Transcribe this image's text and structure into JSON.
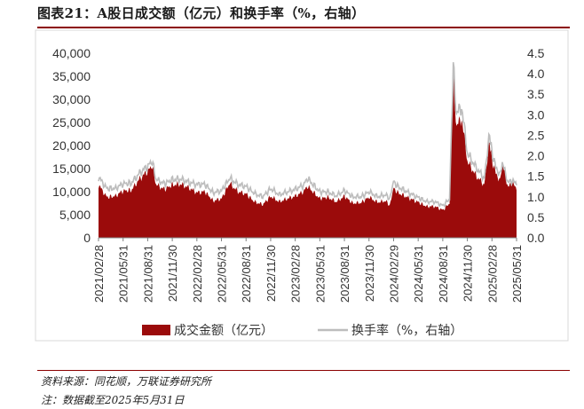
{
  "figure": {
    "title": "图表21：A股日成交额（亿元）和换手率（%，右轴）",
    "source": "资料来源：同花顺，万联证券研究所",
    "note": "注：数据截至2025年5月31日"
  },
  "chart_data": {
    "type": "area+line",
    "x_start": "2021/02/28",
    "x_end": "2025/05/31",
    "x_tick_labels": [
      "2021/02/28",
      "2021/05/31",
      "2021/08/31",
      "2021/11/30",
      "2022/02/28",
      "2022/05/31",
      "2022/08/31",
      "2022/11/30",
      "2023/02/28",
      "2023/05/31",
      "2023/08/31",
      "2023/11/30",
      "2024/02/29",
      "2024/05/31",
      "2024/08/31",
      "2024/11/30",
      "2025/02/28",
      "2025/05/31"
    ],
    "y_left": {
      "min": 0,
      "max": 40000,
      "ticks": [
        "0",
        "5,000",
        "10,000",
        "15,000",
        "20,000",
        "25,000",
        "30,000",
        "35,000",
        "40,000"
      ]
    },
    "y_right": {
      "min": 0,
      "max": 4.5,
      "ticks": [
        "0.0",
        "0.5",
        "1.0",
        "1.5",
        "2.0",
        "2.5",
        "3.0",
        "3.5",
        "4.0",
        "4.5"
      ]
    },
    "grid": false,
    "legend_position": "bottom",
    "series": [
      {
        "name": "成交金额（亿元）",
        "kind": "area",
        "axis": "left",
        "color": "#9b0b0b",
        "points": [
          [
            "2021/02/28",
            11500
          ],
          [
            "2021/03/31",
            8800
          ],
          [
            "2021/04/30",
            9000
          ],
          [
            "2021/05/31",
            10200
          ],
          [
            "2021/06/30",
            10300
          ],
          [
            "2021/07/31",
            12800
          ],
          [
            "2021/08/31",
            14500
          ],
          [
            "2021/09/15",
            15700
          ],
          [
            "2021/09/30",
            11500
          ],
          [
            "2021/10/31",
            10500
          ],
          [
            "2021/11/30",
            11500
          ],
          [
            "2021/12/31",
            11600
          ],
          [
            "2022/01/31",
            10800
          ],
          [
            "2022/02/28",
            9800
          ],
          [
            "2022/03/31",
            10000
          ],
          [
            "2022/04/30",
            8000
          ],
          [
            "2022/05/31",
            8500
          ],
          [
            "2022/06/30",
            11800
          ],
          [
            "2022/07/31",
            10000
          ],
          [
            "2022/08/31",
            9500
          ],
          [
            "2022/09/30",
            7800
          ],
          [
            "2022/10/31",
            7200
          ],
          [
            "2022/11/30",
            9000
          ],
          [
            "2022/12/31",
            7800
          ],
          [
            "2023/01/31",
            8500
          ],
          [
            "2023/02/28",
            9000
          ],
          [
            "2023/03/31",
            10000
          ],
          [
            "2023/04/15",
            11200
          ],
          [
            "2023/05/31",
            8500
          ],
          [
            "2023/06/30",
            8800
          ],
          [
            "2023/07/31",
            7800
          ],
          [
            "2023/08/31",
            9000
          ],
          [
            "2023/09/30",
            7500
          ],
          [
            "2023/10/31",
            7600
          ],
          [
            "2023/11/30",
            8800
          ],
          [
            "2023/12/31",
            7700
          ],
          [
            "2024/01/31",
            8000
          ],
          [
            "2024/02/15",
            7000
          ],
          [
            "2024/02/29",
            10800
          ],
          [
            "2024/03/15",
            9800
          ],
          [
            "2024/04/30",
            8500
          ],
          [
            "2024/05/31",
            7700
          ],
          [
            "2024/06/30",
            6800
          ],
          [
            "2024/07/31",
            6800
          ],
          [
            "2024/08/31",
            6000
          ],
          [
            "2024/09/24",
            7500
          ],
          [
            "2024/10/08",
            34800
          ],
          [
            "2024/10/20",
            24000
          ],
          [
            "2024/11/08",
            26000
          ],
          [
            "2024/11/30",
            16500
          ],
          [
            "2024/12/31",
            13500
          ],
          [
            "2025/01/31",
            11500
          ],
          [
            "2025/02/20",
            21000
          ],
          [
            "2025/02/28",
            17000
          ],
          [
            "2025/03/15",
            14000
          ],
          [
            "2025/03/31",
            12500
          ],
          [
            "2025/04/08",
            16000
          ],
          [
            "2025/04/30",
            11000
          ],
          [
            "2025/05/15",
            12000
          ],
          [
            "2025/05/31",
            10300
          ]
        ]
      },
      {
        "name": "换手率（%，右轴）",
        "kind": "line",
        "axis": "right",
        "color": "#bdbdbd",
        "points": [
          [
            "2021/02/28",
            1.48
          ],
          [
            "2021/03/31",
            1.2
          ],
          [
            "2021/04/30",
            1.2
          ],
          [
            "2021/05/31",
            1.32
          ],
          [
            "2021/06/30",
            1.33
          ],
          [
            "2021/07/31",
            1.58
          ],
          [
            "2021/08/31",
            1.75
          ],
          [
            "2021/09/15",
            1.88
          ],
          [
            "2021/09/30",
            1.42
          ],
          [
            "2021/10/31",
            1.32
          ],
          [
            "2021/11/30",
            1.42
          ],
          [
            "2021/12/31",
            1.43
          ],
          [
            "2022/01/31",
            1.35
          ],
          [
            "2022/02/28",
            1.3
          ],
          [
            "2022/03/31",
            1.3
          ],
          [
            "2022/04/30",
            1.1
          ],
          [
            "2022/05/31",
            1.15
          ],
          [
            "2022/06/30",
            1.45
          ],
          [
            "2022/07/31",
            1.3
          ],
          [
            "2022/08/31",
            1.25
          ],
          [
            "2022/09/30",
            1.08
          ],
          [
            "2022/10/31",
            1.0
          ],
          [
            "2022/11/30",
            1.2
          ],
          [
            "2022/12/31",
            1.05
          ],
          [
            "2023/01/31",
            1.12
          ],
          [
            "2023/02/28",
            1.18
          ],
          [
            "2023/03/31",
            1.28
          ],
          [
            "2023/04/15",
            1.45
          ],
          [
            "2023/05/31",
            1.12
          ],
          [
            "2023/06/30",
            1.12
          ],
          [
            "2023/07/31",
            1.02
          ],
          [
            "2023/08/31",
            1.15
          ],
          [
            "2023/09/30",
            1.0
          ],
          [
            "2023/10/31",
            1.0
          ],
          [
            "2023/11/30",
            1.12
          ],
          [
            "2023/12/31",
            1.0
          ],
          [
            "2024/01/31",
            1.05
          ],
          [
            "2024/02/15",
            0.95
          ],
          [
            "2024/02/29",
            1.38
          ],
          [
            "2024/03/15",
            1.25
          ],
          [
            "2024/04/30",
            1.08
          ],
          [
            "2024/05/31",
            0.98
          ],
          [
            "2024/06/30",
            0.88
          ],
          [
            "2024/07/31",
            0.88
          ],
          [
            "2024/08/31",
            0.78
          ],
          [
            "2024/09/24",
            0.95
          ],
          [
            "2024/10/08",
            4.2
          ],
          [
            "2024/10/20",
            3.0
          ],
          [
            "2024/11/08",
            3.2
          ],
          [
            "2024/11/30",
            2.05
          ],
          [
            "2024/12/31",
            1.72
          ],
          [
            "2025/01/31",
            1.45
          ],
          [
            "2025/02/20",
            2.55
          ],
          [
            "2025/02/28",
            2.1
          ],
          [
            "2025/03/15",
            1.72
          ],
          [
            "2025/03/31",
            1.55
          ],
          [
            "2025/04/08",
            1.82
          ],
          [
            "2025/04/30",
            1.35
          ],
          [
            "2025/05/15",
            1.4
          ],
          [
            "2025/05/31",
            1.28
          ]
        ]
      }
    ]
  }
}
